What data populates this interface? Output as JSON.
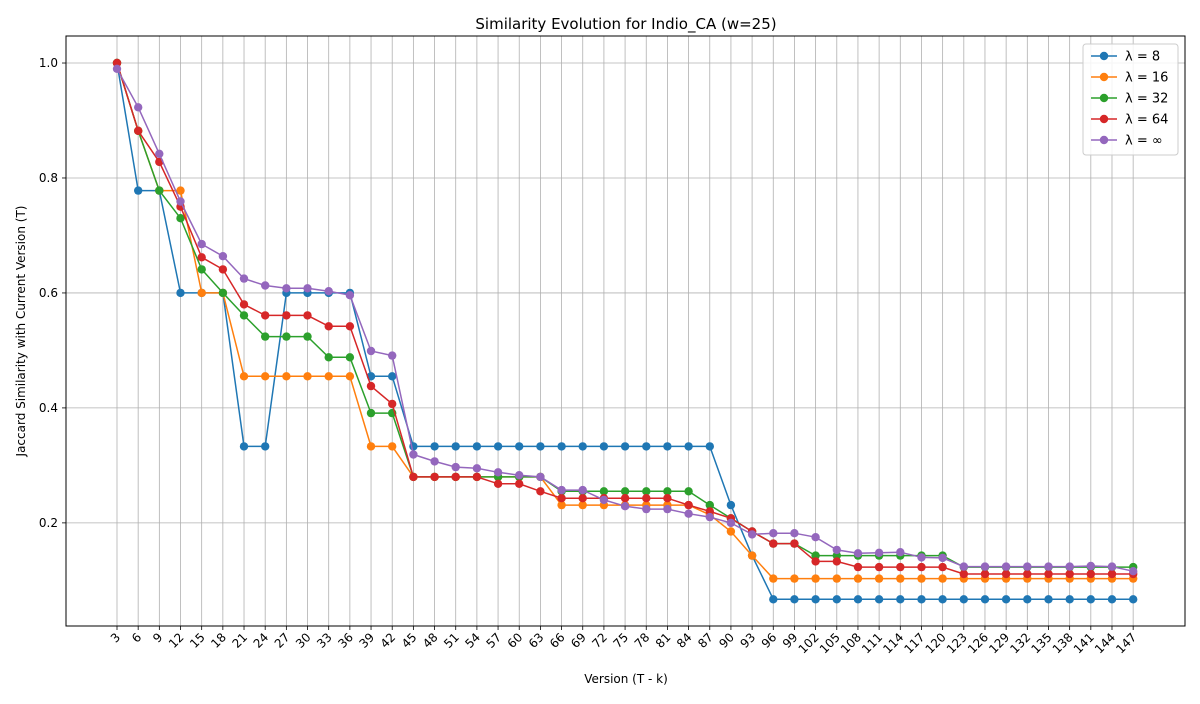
{
  "chart_data": {
    "type": "line",
    "title": "Similarity Evolution for Indio_CA (w=25)",
    "xlabel": "Version (T - k)",
    "ylabel": "Jaccard Similarity with Current Version (T)",
    "ylim": [
      0.0206,
      1.047
    ],
    "yticks": [
      0.2,
      0.4,
      0.6,
      0.8,
      1.0
    ],
    "ytick_labels": [
      "0.2",
      "0.4",
      "0.6",
      "0.8",
      "1.0"
    ],
    "grid": true,
    "legend_position": "top-right",
    "x_labels": [
      "3",
      "6",
      "9",
      "12",
      "15",
      "18",
      "21",
      "24",
      "27",
      "30",
      "33",
      "36",
      "39",
      "42",
      "45",
      "48",
      "51",
      "54",
      "57",
      "60",
      "63",
      "66",
      "69",
      "72",
      "75",
      "78",
      "81",
      "84",
      "87",
      "90",
      "93",
      "96",
      "99",
      "102",
      "105",
      "108",
      "111",
      "114",
      "117",
      "120",
      "123",
      "126",
      "129",
      "132",
      "135",
      "138",
      "141",
      "144",
      "147"
    ],
    "series": [
      {
        "name": "λ = 8",
        "color": "#1f77b4",
        "values": [
          1.0,
          0.778,
          0.778,
          0.6,
          0.6,
          0.6,
          0.333,
          0.333,
          0.6,
          0.6,
          0.6,
          0.6,
          0.455,
          0.455,
          0.333,
          0.333,
          0.333,
          0.333,
          0.333,
          0.333,
          0.333,
          0.333,
          0.333,
          0.333,
          0.333,
          0.333,
          0.333,
          0.333,
          0.333,
          0.231,
          0.143,
          0.067,
          0.067,
          0.067,
          0.067,
          0.067,
          0.067,
          0.067,
          0.067,
          0.067,
          0.067,
          0.067,
          0.067,
          0.067,
          0.067,
          0.067,
          0.067,
          0.067,
          0.067
        ]
      },
      {
        "name": "λ = 16",
        "color": "#ff7f0e",
        "values": [
          1.0,
          0.882,
          0.778,
          0.778,
          0.6,
          0.6,
          0.455,
          0.455,
          0.455,
          0.455,
          0.455,
          0.455,
          0.333,
          0.333,
          0.28,
          0.28,
          0.28,
          0.28,
          0.28,
          0.28,
          0.28,
          0.231,
          0.231,
          0.231,
          0.231,
          0.231,
          0.231,
          0.231,
          0.214,
          0.185,
          0.143,
          0.103,
          0.103,
          0.103,
          0.103,
          0.103,
          0.103,
          0.103,
          0.103,
          0.103,
          0.103,
          0.103,
          0.103,
          0.103,
          0.103,
          0.103,
          0.103,
          0.103,
          0.103
        ]
      },
      {
        "name": "λ = 32",
        "color": "#2ca02c",
        "values": [
          1.0,
          0.882,
          0.778,
          0.73,
          0.641,
          0.6,
          0.561,
          0.524,
          0.524,
          0.524,
          0.488,
          0.488,
          0.391,
          0.391,
          0.28,
          0.28,
          0.28,
          0.28,
          0.28,
          0.28,
          0.28,
          0.255,
          0.255,
          0.255,
          0.255,
          0.255,
          0.255,
          0.255,
          0.231,
          0.208,
          0.185,
          0.164,
          0.164,
          0.143,
          0.143,
          0.143,
          0.143,
          0.143,
          0.143,
          0.143,
          0.123,
          0.123,
          0.123,
          0.123,
          0.123,
          0.123,
          0.123,
          0.123,
          0.123
        ]
      },
      {
        "name": "λ = 64",
        "color": "#d62728",
        "values": [
          1.0,
          0.882,
          0.828,
          0.75,
          0.662,
          0.641,
          0.58,
          0.561,
          0.561,
          0.561,
          0.542,
          0.542,
          0.438,
          0.407,
          0.28,
          0.28,
          0.28,
          0.28,
          0.268,
          0.268,
          0.255,
          0.243,
          0.243,
          0.243,
          0.243,
          0.243,
          0.243,
          0.231,
          0.22,
          0.208,
          0.185,
          0.164,
          0.164,
          0.133,
          0.133,
          0.123,
          0.123,
          0.123,
          0.123,
          0.123,
          0.111,
          0.111,
          0.111,
          0.111,
          0.111,
          0.111,
          0.111,
          0.111,
          0.111
        ]
      },
      {
        "name": "λ = ∞",
        "color": "#9467bd",
        "values": [
          0.99,
          0.923,
          0.842,
          0.759,
          0.685,
          0.664,
          0.625,
          0.613,
          0.608,
          0.608,
          0.603,
          0.596,
          0.499,
          0.491,
          0.319,
          0.307,
          0.297,
          0.295,
          0.288,
          0.283,
          0.28,
          0.257,
          0.257,
          0.24,
          0.229,
          0.224,
          0.224,
          0.216,
          0.21,
          0.2,
          0.18,
          0.182,
          0.182,
          0.175,
          0.153,
          0.147,
          0.148,
          0.149,
          0.14,
          0.139,
          0.124,
          0.124,
          0.124,
          0.124,
          0.124,
          0.124,
          0.125,
          0.124,
          0.116
        ]
      }
    ]
  }
}
